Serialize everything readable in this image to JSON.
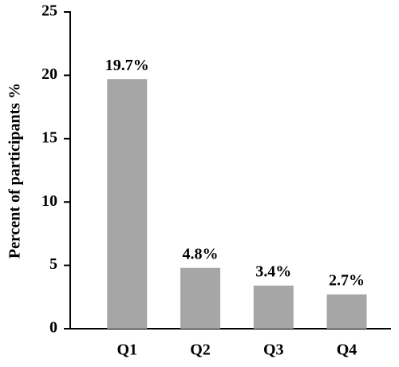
{
  "chart_data": {
    "type": "bar",
    "y_label": "Percent of participants %",
    "categories": [
      "Q1",
      "Q2",
      "Q3",
      "Q4"
    ],
    "values": [
      19.7,
      4.8,
      3.4,
      2.7
    ],
    "value_labels": [
      "19.7%",
      "4.8%",
      "3.4%",
      "2.7%"
    ],
    "color": "#a6a6a6",
    "ylim": [
      0,
      25
    ],
    "yticks": [
      0,
      5,
      10,
      15,
      20,
      25
    ],
    "grid": false
  }
}
